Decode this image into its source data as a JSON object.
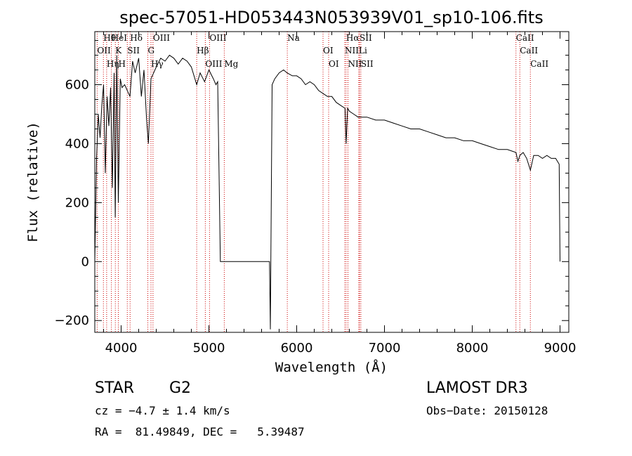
{
  "chart_data": {
    "type": "line",
    "title": "spec-57051-HD053443N053939V01_sp10-106.fits",
    "xlabel": "Wavelength (Å)",
    "ylabel": "Flux (relative)",
    "xlim": [
      3700,
      9100
    ],
    "ylim": [
      -240,
      780
    ],
    "xticks": [
      4000,
      5000,
      6000,
      7000,
      8000,
      9000
    ],
    "yticks": [
      -200,
      0,
      200,
      400,
      600
    ],
    "grid": false,
    "series": [
      {
        "x": [
          3700,
          3720,
          3740,
          3760,
          3780,
          3800,
          3820,
          3840,
          3860,
          3880,
          3900,
          3920,
          3933,
          3950,
          3968,
          3990,
          4010,
          4040,
          4070,
          4101,
          4130,
          4160,
          4200,
          4230,
          4260,
          4290,
          4310,
          4340,
          4370,
          4400,
          4450,
          4500,
          4550,
          4600,
          4650,
          4700,
          4750,
          4800,
          4861,
          4900,
          4950,
          5000,
          5050,
          5080,
          5100,
          5130,
          5200,
          5300,
          5400,
          5500,
          5600,
          5690,
          5700,
          5720,
          5750,
          5800,
          5850,
          5890,
          5950,
          6000,
          6050,
          6100,
          6150,
          6200,
          6250,
          6300,
          6350,
          6400,
          6450,
          6500,
          6550,
          6563,
          6580,
          6600,
          6650,
          6700,
          6750,
          6800,
          6900,
          7000,
          7100,
          7200,
          7300,
          7400,
          7500,
          7600,
          7700,
          7800,
          7900,
          8000,
          8100,
          8200,
          8300,
          8400,
          8498,
          8520,
          8542,
          8580,
          8620,
          8662,
          8700,
          8750,
          8800,
          8850,
          8900,
          8950,
          8990,
          9000
        ],
        "values": [
          0,
          350,
          500,
          420,
          530,
          600,
          300,
          560,
          460,
          590,
          250,
          640,
          150,
          700,
          200,
          620,
          590,
          600,
          580,
          560,
          680,
          640,
          690,
          560,
          650,
          480,
          400,
          620,
          640,
          660,
          690,
          680,
          700,
          690,
          670,
          690,
          680,
          660,
          600,
          640,
          610,
          650,
          620,
          600,
          610,
          0,
          0,
          0,
          0,
          0,
          0,
          0,
          -230,
          600,
          620,
          640,
          650,
          640,
          630,
          630,
          620,
          600,
          610,
          600,
          580,
          570,
          560,
          560,
          540,
          530,
          520,
          400,
          520,
          510,
          500,
          490,
          490,
          490,
          480,
          480,
          470,
          460,
          450,
          450,
          440,
          430,
          420,
          420,
          410,
          410,
          400,
          390,
          380,
          380,
          370,
          340,
          360,
          370,
          350,
          310,
          360,
          360,
          350,
          360,
          350,
          350,
          330,
          0
        ]
      }
    ],
    "lines": [
      {
        "name": "Hθ",
        "x": 3798
      },
      {
        "name": "OII",
        "x": 3727
      },
      {
        "name": "Hη",
        "x": 3835
      },
      {
        "name": "HeI",
        "x": 3889
      },
      {
        "name": "K",
        "x": 3934
      },
      {
        "name": "H",
        "x": 3968
      },
      {
        "name": "Hδ",
        "x": 4102
      },
      {
        "name": "SII",
        "x": 4070
      },
      {
        "name": "Hγ",
        "x": 4340
      },
      {
        "name": "OIII",
        "x": 4363
      },
      {
        "name": "G",
        "x": 4304
      },
      {
        "name": "OIII",
        "x": 4959
      },
      {
        "name": "OIII",
        "x": 5007
      },
      {
        "name": "Hβ",
        "x": 4861
      },
      {
        "name": "Mg",
        "x": 5175
      },
      {
        "name": "Na",
        "x": 5893
      },
      {
        "name": "OI",
        "x": 6300
      },
      {
        "name": "OI",
        "x": 6364
      },
      {
        "name": "Hα",
        "x": 6563
      },
      {
        "name": "NII",
        "x": 6548
      },
      {
        "name": "NII",
        "x": 6584
      },
      {
        "name": "SII",
        "x": 6716
      },
      {
        "name": "Li",
        "x": 6708
      },
      {
        "name": "SII",
        "x": 6731
      },
      {
        "name": "CaII",
        "x": 8498
      },
      {
        "name": "CaII",
        "x": 8542
      },
      {
        "name": "CaII",
        "x": 8662
      }
    ],
    "line_color": "#cc0000"
  },
  "info": {
    "class_label": "STAR",
    "subclass": "G2",
    "survey": "LAMOST DR3",
    "cz": "cz = −4.7 ± 1.4 km/s",
    "obs_date": "Obs−Date: 20150128",
    "coords": "RA =  81.49849, DEC =   5.39487"
  }
}
